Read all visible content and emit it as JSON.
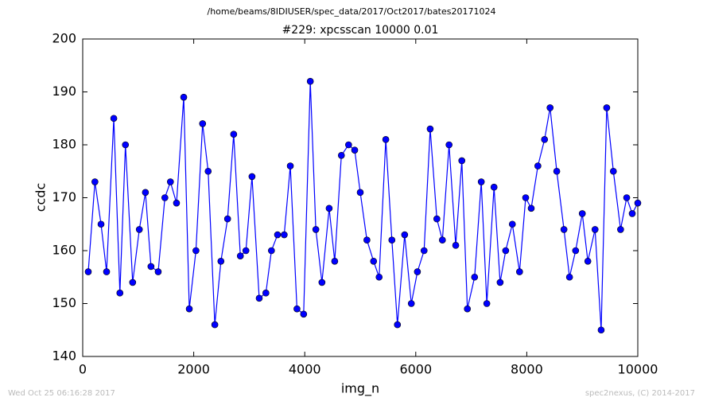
{
  "chart_data": {
    "type": "line",
    "header": "/home/beams/8IDIUSER/spec_data/2017/Oct2017/bates20171024",
    "title": "#229: xpcsscan 10000 0.01",
    "x_label": "img_n",
    "y_label": "ccdc",
    "footer_left": "Wed Oct 25 06:16:28 2017",
    "footer_right": "spec2nexus, (C) 2014-2017",
    "xlim": [
      0,
      10000
    ],
    "xticks": [
      0,
      2000,
      4000,
      6000,
      8000,
      10000
    ],
    "ylim": [
      140,
      200
    ],
    "yticks": [
      140,
      150,
      160,
      170,
      180,
      190,
      200
    ],
    "x": [
      100,
      220,
      330,
      430,
      560,
      670,
      770,
      900,
      1020,
      1130,
      1230,
      1360,
      1480,
      1580,
      1690,
      1820,
      1920,
      2040,
      2160,
      2260,
      2380,
      2490,
      2610,
      2720,
      2840,
      2940,
      3050,
      3180,
      3300,
      3400,
      3510,
      3630,
      3740,
      3860,
      3980,
      4100,
      4200,
      4310,
      4440,
      4540,
      4660,
      4790,
      4900,
      5000,
      5120,
      5240,
      5340,
      5460,
      5570,
      5670,
      5800,
      5920,
      6030,
      6150,
      6260,
      6380,
      6480,
      6600,
      6720,
      6830,
      6930,
      7060,
      7180,
      7280,
      7410,
      7520,
      7620,
      7740,
      7870,
      7980,
      8080,
      8200,
      8320,
      8420,
      8540,
      8670,
      8770,
      8880,
      9000,
      9100,
      9230,
      9340,
      9440,
      9560,
      9690,
      9800,
      9900,
      10000
    ],
    "series": [
      {
        "name": "ccdc",
        "color": "#0000ff",
        "values": [
          156,
          173,
          165,
          156,
          185,
          152,
          180,
          154,
          164,
          171,
          157,
          156,
          170,
          173,
          169,
          189,
          149,
          160,
          184,
          175,
          146,
          158,
          166,
          182,
          159,
          160,
          174,
          151,
          152,
          160,
          163,
          163,
          176,
          149,
          148,
          192,
          164,
          154,
          168,
          158,
          178,
          180,
          179,
          171,
          162,
          158,
          155,
          181,
          162,
          146,
          163,
          150,
          156,
          160,
          183,
          166,
          162,
          180,
          161,
          177,
          149,
          155,
          173,
          150,
          172,
          154,
          160,
          165,
          156,
          170,
          168,
          176,
          181,
          187,
          175,
          164,
          155,
          160,
          167,
          158,
          164,
          145,
          187,
          175,
          164,
          170,
          167,
          169
        ]
      }
    ]
  }
}
